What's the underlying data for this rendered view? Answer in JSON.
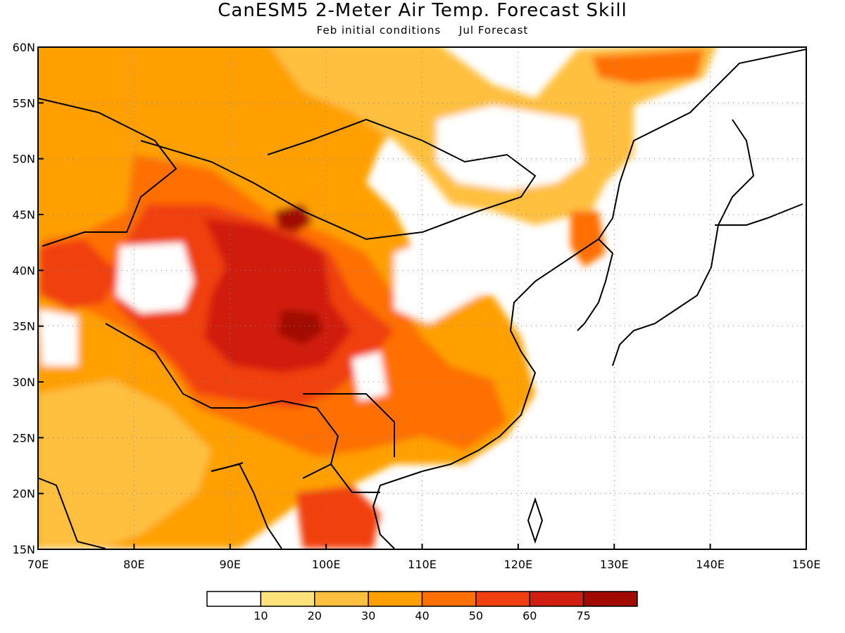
{
  "title": "CanESM5 2-Meter Air Temp. Forecast Skill",
  "subtitle_left": "Feb initial conditions",
  "subtitle_right": "Jul Forecast",
  "map": {
    "lon_range": [
      70,
      150
    ],
    "lat_range": [
      15,
      60
    ],
    "lon_ticks": [
      "70E",
      "80E",
      "90E",
      "100E",
      "110E",
      "120E",
      "130E",
      "140E",
      "150E"
    ],
    "lat_ticks": [
      "15N",
      "20N",
      "25N",
      "30N",
      "35N",
      "40N",
      "45N",
      "50N",
      "55N",
      "60N"
    ],
    "grid": true
  },
  "colorbar": {
    "colors": [
      "#ffffff",
      "#ffe27a",
      "#ffc040",
      "#ffa000",
      "#ff7000",
      "#f04010",
      "#d01e10",
      "#a00a00"
    ],
    "labels": [
      "10",
      "20",
      "30",
      "40",
      "50",
      "60",
      "75"
    ]
  }
}
